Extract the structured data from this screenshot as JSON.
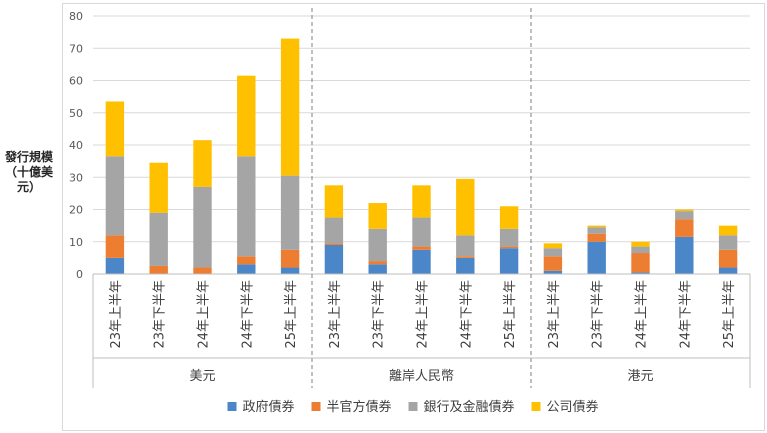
{
  "chart_data": {
    "type": "bar",
    "stacked": true,
    "ylabel_lines": [
      "發行規模",
      "（十億美",
      "元）"
    ],
    "ylim": [
      0,
      80
    ],
    "yticks": [
      0,
      10,
      20,
      30,
      40,
      50,
      60,
      70,
      80
    ],
    "grid": true,
    "legend_position": "bottom",
    "groups": [
      {
        "name": "美元",
        "categories": [
          "23年上半年",
          "23年下半年",
          "24年上半年",
          "24年下半年",
          "25年上半年"
        ]
      },
      {
        "name": "離岸人民幣",
        "categories": [
          "23年上半年",
          "23年下半年",
          "24年上半年",
          "24年下半年",
          "25年上半年"
        ]
      },
      {
        "name": "港元",
        "categories": [
          "23年上半年",
          "23年下半年",
          "24年上半年",
          "24年下半年",
          "25年上半年"
        ]
      }
    ],
    "series": [
      {
        "name": "政府債券",
        "color": "#4a86c8",
        "values": [
          5.0,
          0.0,
          0.0,
          3.0,
          2.0,
          9.0,
          3.0,
          7.5,
          5.0,
          8.0,
          1.0,
          10.0,
          0.5,
          11.5,
          2.0
        ]
      },
      {
        "name": "半官方債券",
        "color": "#ed7d31",
        "values": [
          7.0,
          2.5,
          2.0,
          2.5,
          5.5,
          0.5,
          1.0,
          1.0,
          0.5,
          0.5,
          4.5,
          2.5,
          6.0,
          5.5,
          5.5
        ]
      },
      {
        "name": "銀行及金融債券",
        "color": "#a5a5a5",
        "values": [
          24.5,
          16.5,
          25.0,
          31.0,
          23.0,
          8.0,
          10.0,
          9.0,
          6.5,
          5.5,
          2.5,
          2.0,
          2.0,
          2.5,
          4.5
        ]
      },
      {
        "name": "公司債券",
        "color": "#ffc000",
        "values": [
          17.0,
          15.5,
          14.5,
          25.0,
          42.5,
          10.0,
          8.0,
          10.0,
          17.5,
          7.0,
          1.5,
          0.5,
          1.5,
          0.5,
          3.0
        ]
      }
    ]
  }
}
